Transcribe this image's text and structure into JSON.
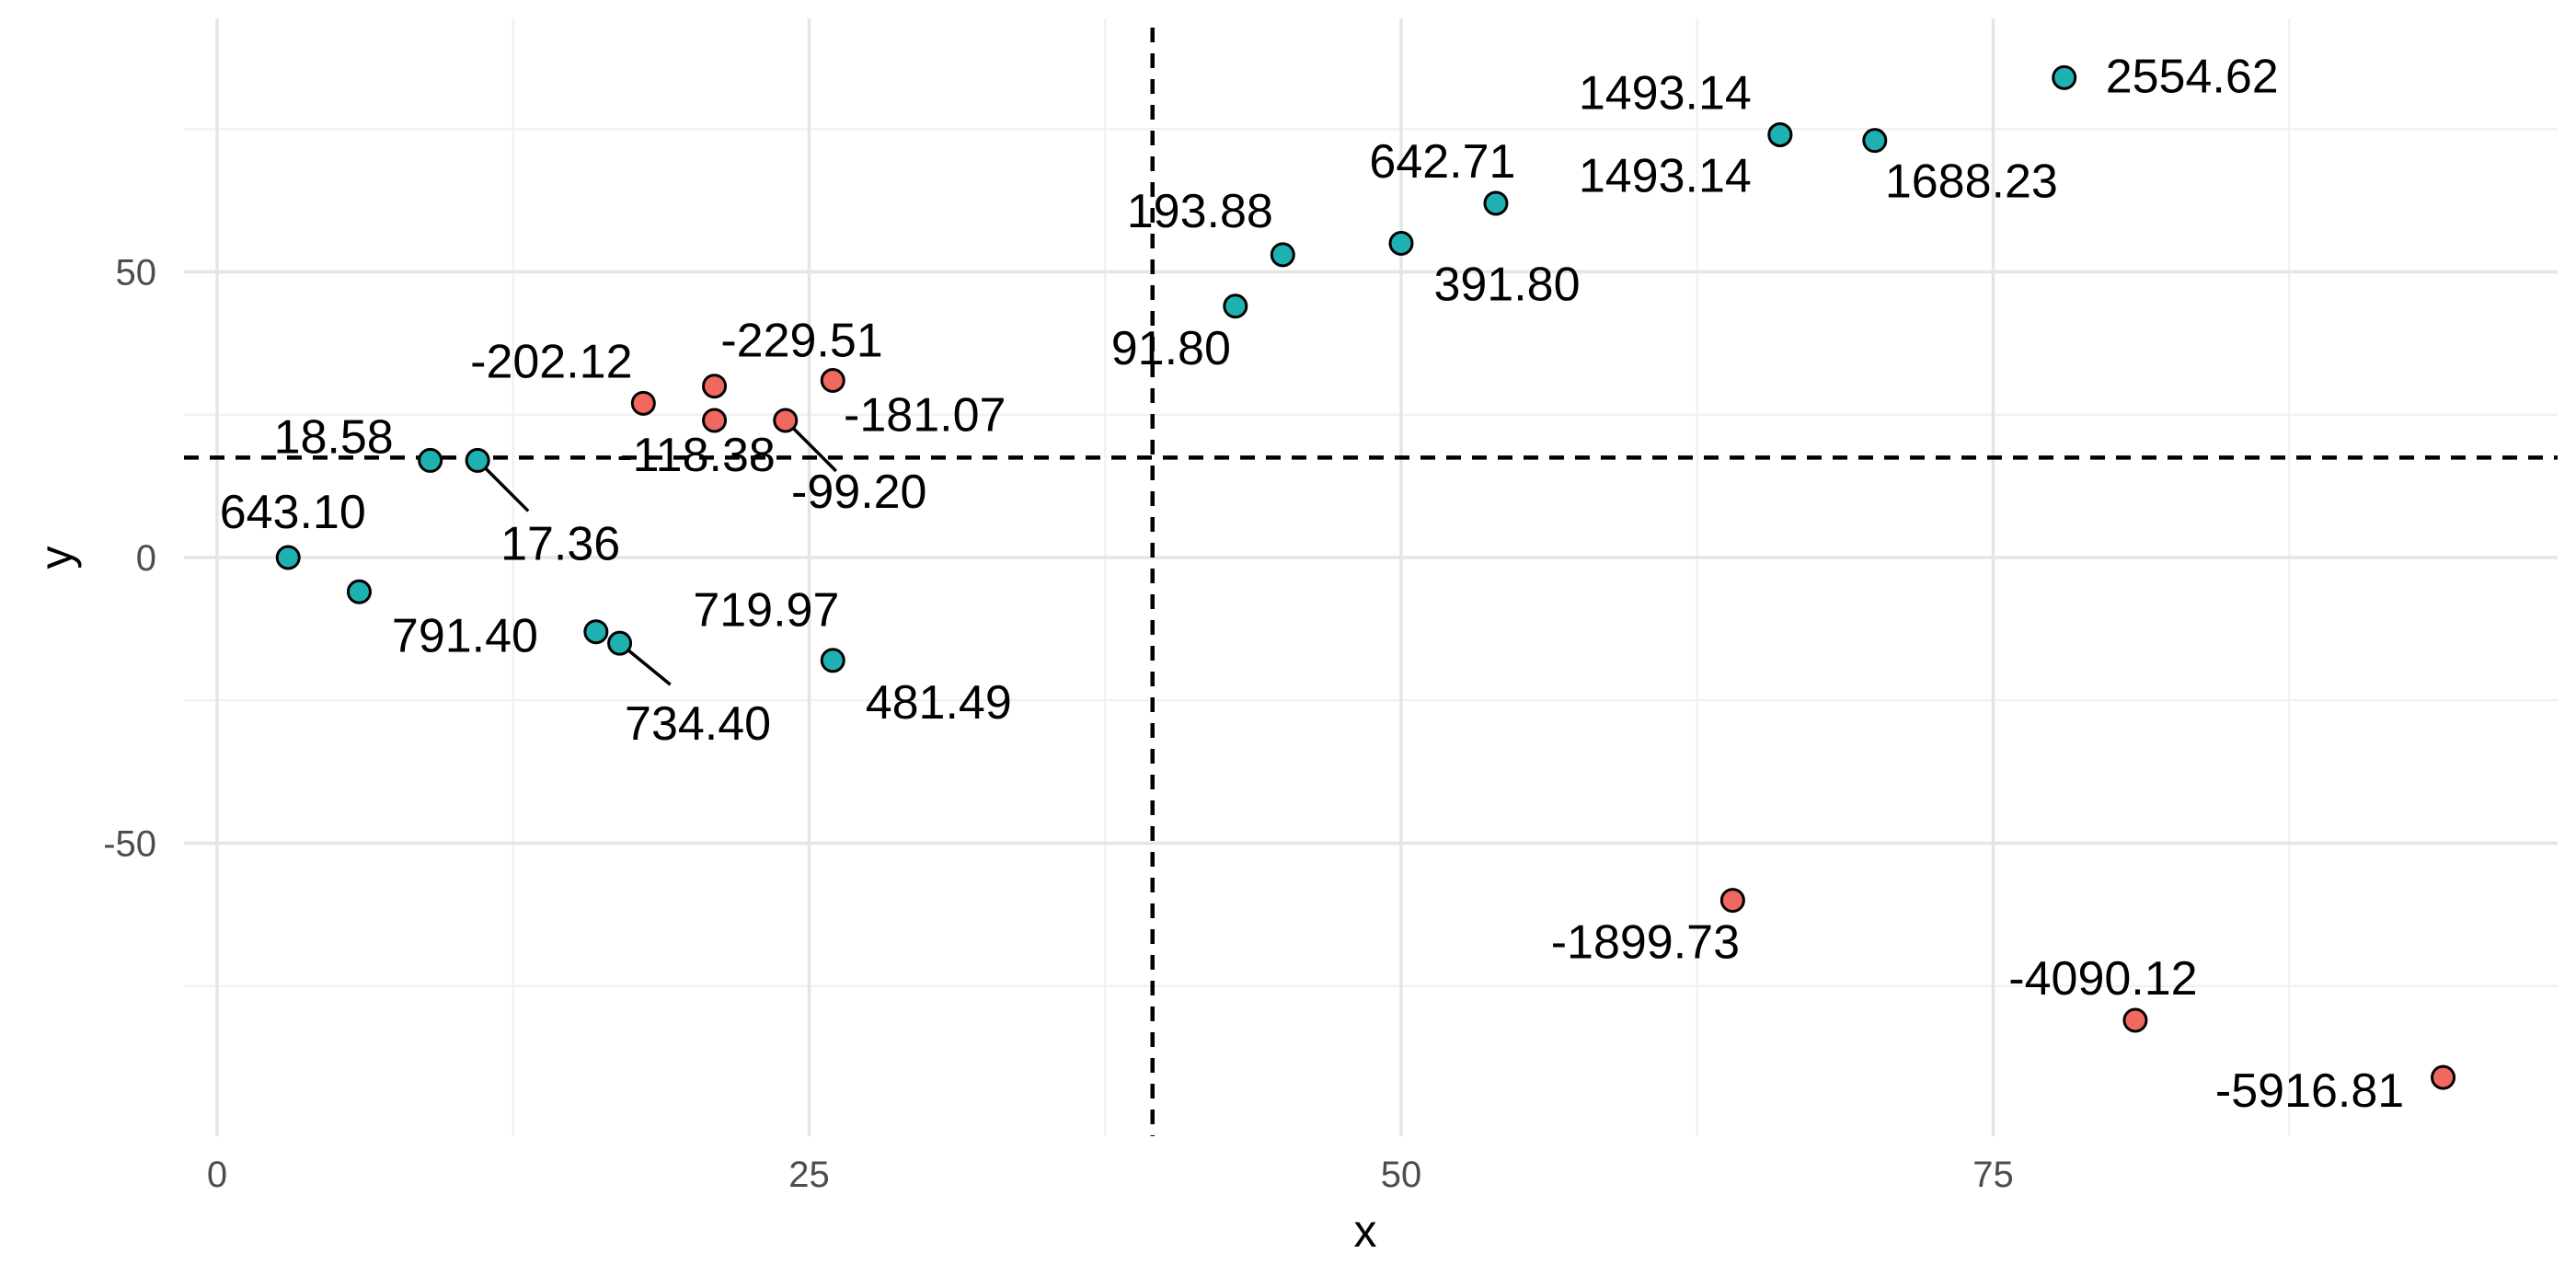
{
  "chart_data": {
    "type": "scatter",
    "title": "",
    "xlabel": "x",
    "ylabel": "y",
    "xlim": [
      -3,
      98
    ],
    "ylim": [
      -100,
      92
    ],
    "x_ticks": [
      0,
      25,
      50,
      75
    ],
    "y_ticks": [
      -50,
      0,
      50
    ],
    "grid": true,
    "legend": "none",
    "reference_lines": {
      "x": 39.5,
      "y": 17.5,
      "style": "dashed"
    },
    "colors": {
      "positive": "#1FB1B1",
      "negative": "#F06860"
    },
    "points": [
      {
        "x": 3,
        "y": 0,
        "label": "643.10",
        "group": "positive"
      },
      {
        "x": 6,
        "y": -6,
        "label": "791.40",
        "group": "positive"
      },
      {
        "x": 9,
        "y": 17,
        "label": "18.58",
        "group": "positive"
      },
      {
        "x": 11,
        "y": 17,
        "label": "17.36",
        "group": "positive"
      },
      {
        "x": 16,
        "y": -13,
        "label": "719.97",
        "group": "positive"
      },
      {
        "x": 17,
        "y": -15,
        "label": "734.40",
        "group": "positive"
      },
      {
        "x": 18,
        "y": 27,
        "label": "-202.12",
        "group": "negative"
      },
      {
        "x": 21,
        "y": 30,
        "label": "-229.51",
        "group": "negative"
      },
      {
        "x": 21,
        "y": 24,
        "label": "-118.38",
        "group": "negative"
      },
      {
        "x": 24,
        "y": 24,
        "label": "-99.20",
        "group": "negative"
      },
      {
        "x": 26,
        "y": 31,
        "label": "-181.07",
        "group": "negative"
      },
      {
        "x": 26,
        "y": -18,
        "label": "481.49",
        "group": "positive"
      },
      {
        "x": 43,
        "y": 44,
        "label": "91.80",
        "group": "positive"
      },
      {
        "x": 45,
        "y": 53,
        "label": "193.88",
        "group": "positive"
      },
      {
        "x": 50,
        "y": 55,
        "label": "391.80",
        "group": "positive"
      },
      {
        "x": 54,
        "y": 62,
        "label": "642.71",
        "group": "positive"
      },
      {
        "x": 64,
        "y": -60,
        "label": "-1899.73",
        "group": "negative"
      },
      {
        "x": 66,
        "y": 74,
        "label": "1493.14",
        "group": "positive"
      },
      {
        "x": 66,
        "y": 74,
        "label": "1493.14",
        "group": "positive"
      },
      {
        "x": 70,
        "y": 73,
        "label": "1688.23",
        "group": "positive"
      },
      {
        "x": 78,
        "y": 84,
        "label": "2554.62",
        "group": "positive"
      },
      {
        "x": 81,
        "y": -81,
        "label": "-4090.12",
        "group": "negative"
      },
      {
        "x": 94,
        "y": -91,
        "label": "-5916.81",
        "group": "negative"
      }
    ]
  }
}
